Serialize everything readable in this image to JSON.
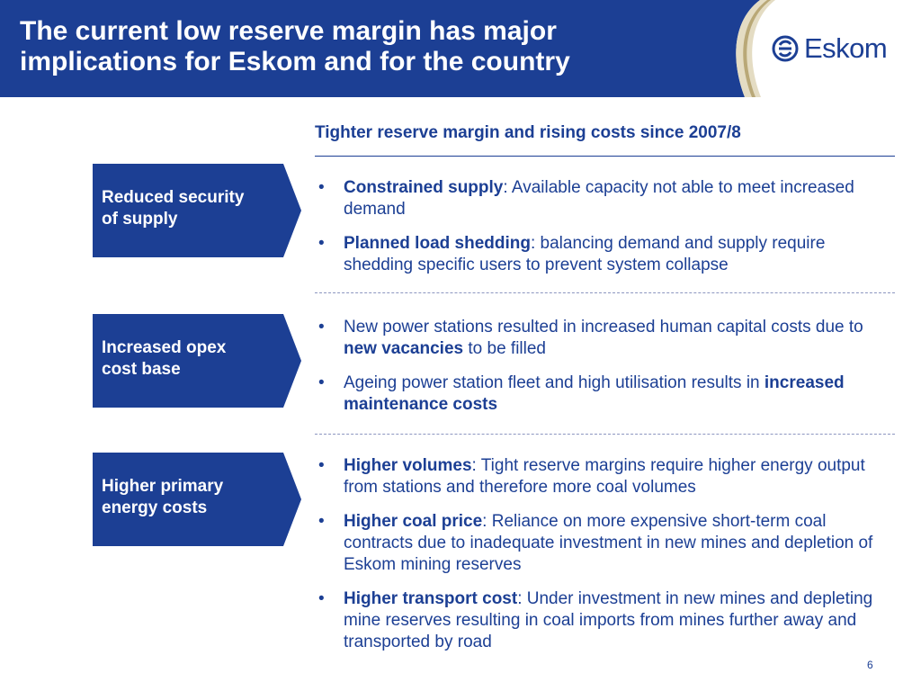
{
  "header": {
    "title_line1": "The current low reserve margin has major",
    "title_line2": "implications for Eskom and for the country",
    "logo_text": "Eskom",
    "band_color": "#1c3f94",
    "accent_color": "#b9a877"
  },
  "subtitle": "Tighter reserve margin and rising costs since 2007/8",
  "sections": [
    {
      "label_line1": "Reduced security",
      "label_line2": "of supply",
      "bullets": [
        {
          "bold": "Constrained supply",
          "rest": ": Available capacity not able to meet increased demand"
        },
        {
          "bold": "Planned load shedding",
          "rest": ": balancing demand and supply require shedding specific users to prevent system collapse"
        }
      ]
    },
    {
      "label_line1": "Increased opex",
      "label_line2": "cost base",
      "bullets": [
        {
          "pre": "New power stations resulted in increased human capital costs due to ",
          "bold": "new vacancies",
          "post": " to be filled"
        },
        {
          "pre": "Ageing power station fleet and high utilisation results in ",
          "bold": "increased maintenance costs",
          "post": ""
        }
      ]
    },
    {
      "label_line1": "Higher primary",
      "label_line2": "energy costs",
      "bullets": [
        {
          "bold": "Higher volumes",
          "rest": ": Tight reserve margins require higher energy output from stations and therefore more coal volumes"
        },
        {
          "bold": "Higher coal price",
          "rest": ": Reliance on more expensive short-term coal contracts due to inadequate investment in new mines and depletion of Eskom mining reserves"
        },
        {
          "bold": "Higher transport cost",
          "rest": ": Under investment in new mines and depleting mine reserves resulting in coal imports from mines further away and transported by road"
        }
      ]
    }
  ],
  "bullet_char": "•",
  "page_number": "6",
  "colors": {
    "primary": "#1c3f94",
    "divider": "#8c96c0",
    "background": "#ffffff"
  }
}
